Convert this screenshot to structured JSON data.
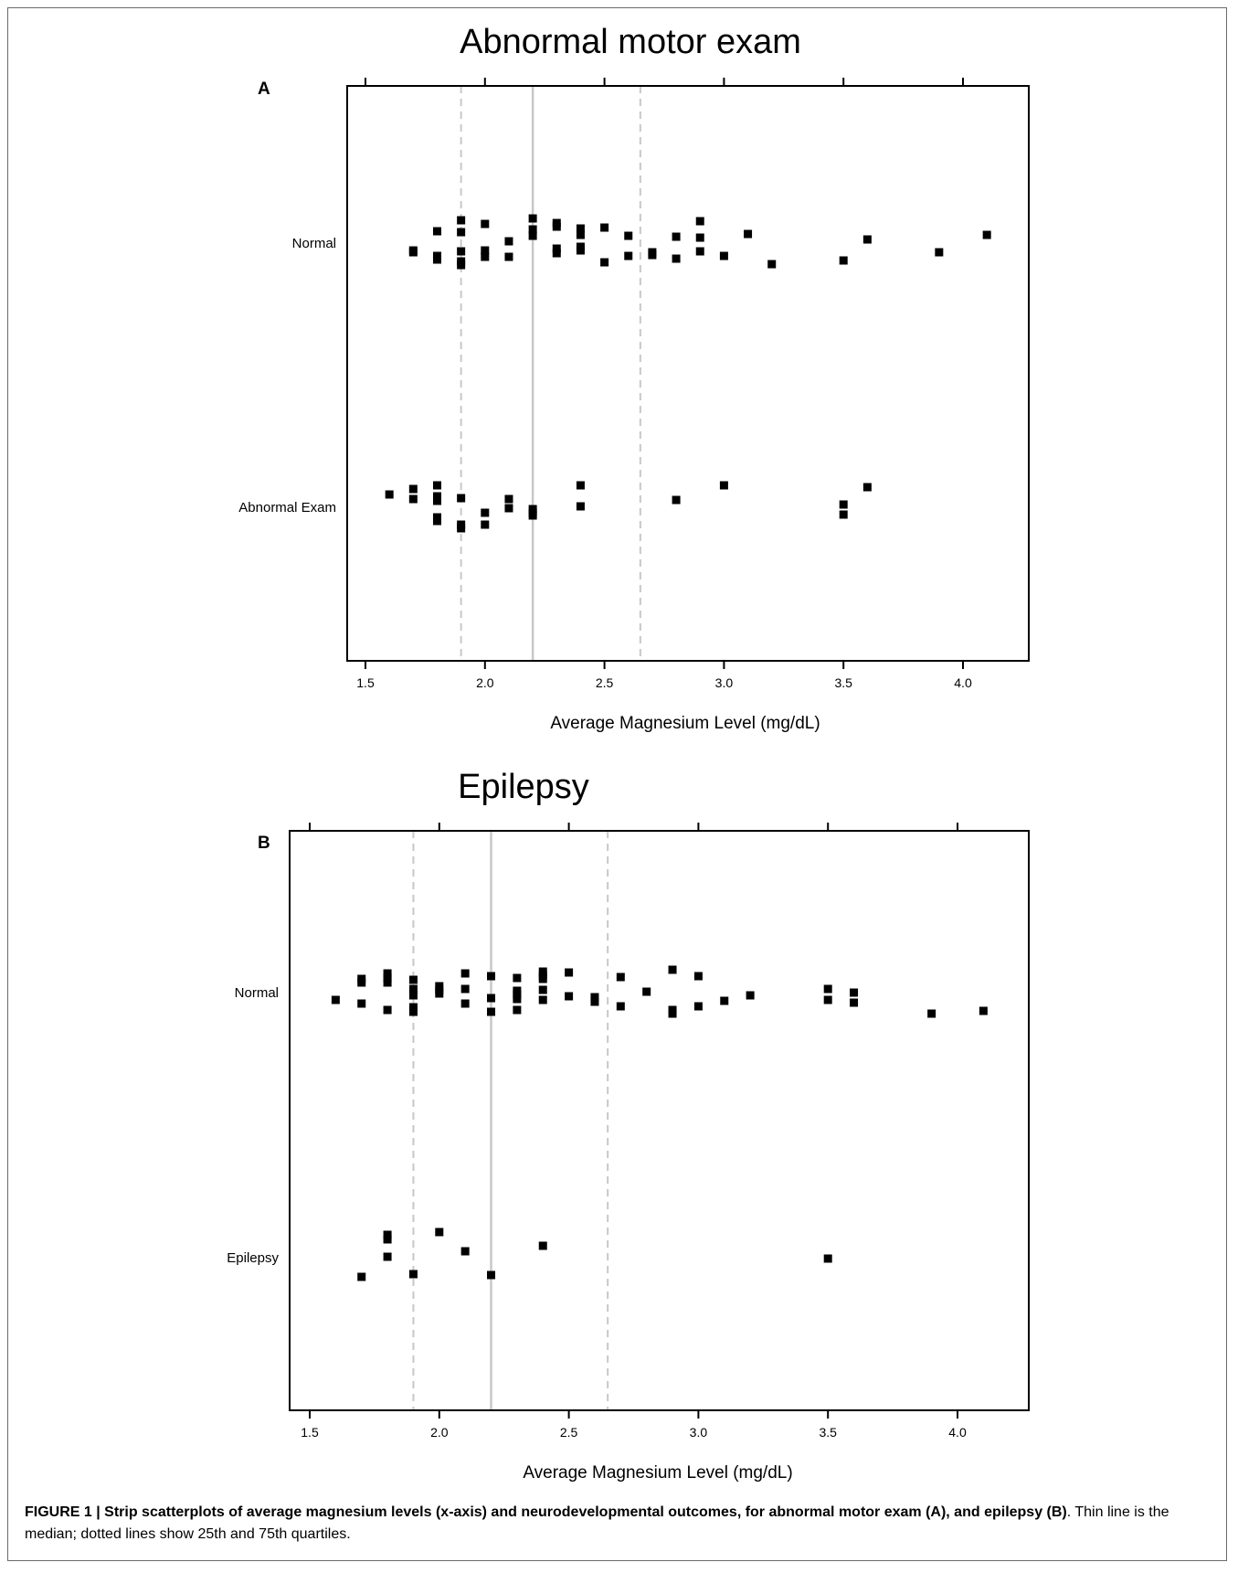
{
  "caption": {
    "bold": "FIGURE 1 | Strip scatterplots of average magnesium levels (x-axis) and neurodevelopmental outcomes, for abnormal motor exam (A), and epilepsy (B)",
    "rest": ". Thin line is the median; dotted lines show 25th and 75th quartiles."
  },
  "chart_data": [
    {
      "type": "scatter",
      "panel": "A",
      "title": "Abnormal motor exam",
      "xlabel": "Average Magnesium Level (mg/dL)",
      "ylabel": "",
      "xlim": [
        1.45,
        4.3
      ],
      "xticks": [
        "1.5",
        "2.0",
        "2.5",
        "3.0",
        "3.5",
        "4.0"
      ],
      "categories": [
        "Normal",
        "Abnormal Exam"
      ],
      "median": 2.2,
      "q1": 1.9,
      "q3": 2.65,
      "grid": false,
      "series": [
        {
          "name": "Normal",
          "jitter": [
            [
              1.7,
              -8
            ],
            [
              1.7,
              -10
            ],
            [
              1.8,
              13
            ],
            [
              1.8,
              -14
            ],
            [
              1.8,
              -18
            ],
            [
              1.9,
              25
            ],
            [
              1.9,
              12
            ],
            [
              1.9,
              -9
            ],
            [
              1.9,
              -20
            ],
            [
              1.9,
              -24
            ],
            [
              2.0,
              21
            ],
            [
              2.0,
              -8
            ],
            [
              2.0,
              -15
            ],
            [
              2.1,
              2
            ],
            [
              2.1,
              -15
            ],
            [
              2.2,
              27
            ],
            [
              2.2,
              15
            ],
            [
              2.2,
              8
            ],
            [
              2.3,
              22
            ],
            [
              2.3,
              18
            ],
            [
              2.3,
              -6
            ],
            [
              2.3,
              -11
            ],
            [
              2.4,
              16
            ],
            [
              2.4,
              9
            ],
            [
              2.4,
              -4
            ],
            [
              2.4,
              -8
            ],
            [
              2.5,
              17
            ],
            [
              2.5,
              -21
            ],
            [
              2.6,
              8
            ],
            [
              2.6,
              -14
            ],
            [
              2.7,
              -10
            ],
            [
              2.7,
              -13
            ],
            [
              2.8,
              7
            ],
            [
              2.8,
              -17
            ],
            [
              2.9,
              24
            ],
            [
              2.9,
              6
            ],
            [
              2.9,
              -9
            ],
            [
              3.0,
              -14
            ],
            [
              3.1,
              10
            ],
            [
              3.2,
              -23
            ],
            [
              3.5,
              -19
            ],
            [
              3.6,
              4
            ],
            [
              3.9,
              -10
            ],
            [
              4.1,
              9
            ]
          ]
        },
        {
          "name": "Abnormal Exam",
          "jitter": [
            [
              1.6,
              14
            ],
            [
              1.7,
              20
            ],
            [
              1.7,
              9
            ],
            [
              1.8,
              24
            ],
            [
              1.8,
              12
            ],
            [
              1.8,
              7
            ],
            [
              1.8,
              -11
            ],
            [
              1.8,
              -15
            ],
            [
              1.9,
              10
            ],
            [
              1.9,
              -19
            ],
            [
              1.9,
              -23
            ],
            [
              2.0,
              -6
            ],
            [
              2.0,
              -19
            ],
            [
              2.1,
              9
            ],
            [
              2.1,
              -1
            ],
            [
              2.2,
              -2
            ],
            [
              2.2,
              -6
            ],
            [
              2.2,
              -9
            ],
            [
              2.4,
              24
            ],
            [
              2.4,
              1
            ],
            [
              2.8,
              8
            ],
            [
              3.0,
              24
            ],
            [
              3.5,
              3
            ],
            [
              3.5,
              -8
            ],
            [
              3.6,
              22
            ]
          ]
        }
      ]
    },
    {
      "type": "scatter",
      "panel": "B",
      "title": "Epilepsy",
      "xlabel": "Average Magnesium Level (mg/dL)",
      "ylabel": "",
      "xlim": [
        1.45,
        4.3
      ],
      "xticks": [
        "1.5",
        "2.0",
        "2.5",
        "3.0",
        "3.5",
        "4.0"
      ],
      "categories": [
        "Normal",
        "Epilepsy"
      ],
      "median": 2.2,
      "q1": 1.9,
      "q3": 2.65,
      "grid": false,
      "series": [
        {
          "name": "Normal",
          "jitter": [
            [
              1.6,
              -8
            ],
            [
              1.7,
              15
            ],
            [
              1.7,
              11
            ],
            [
              1.7,
              -12
            ],
            [
              1.8,
              21
            ],
            [
              1.8,
              16
            ],
            [
              1.8,
              11
            ],
            [
              1.8,
              -19
            ],
            [
              1.9,
              14
            ],
            [
              1.9,
              4
            ],
            [
              1.9,
              -3
            ],
            [
              1.9,
              -16
            ],
            [
              1.9,
              -21
            ],
            [
              2.0,
              7
            ],
            [
              2.0,
              3
            ],
            [
              2.0,
              -1
            ],
            [
              2.1,
              21
            ],
            [
              2.1,
              4
            ],
            [
              2.1,
              -12
            ],
            [
              2.2,
              18
            ],
            [
              2.2,
              -6
            ],
            [
              2.2,
              -21
            ],
            [
              2.3,
              16
            ],
            [
              2.3,
              2
            ],
            [
              2.3,
              -2
            ],
            [
              2.3,
              -7
            ],
            [
              2.3,
              -19
            ],
            [
              2.4,
              23
            ],
            [
              2.4,
              19
            ],
            [
              2.4,
              15
            ],
            [
              2.4,
              3
            ],
            [
              2.4,
              -8
            ],
            [
              2.5,
              22
            ],
            [
              2.5,
              -4
            ],
            [
              2.6,
              -5
            ],
            [
              2.6,
              -10
            ],
            [
              2.7,
              17
            ],
            [
              2.7,
              -15
            ],
            [
              2.8,
              1
            ],
            [
              2.9,
              25
            ],
            [
              2.9,
              -19
            ],
            [
              2.9,
              -23
            ],
            [
              3.0,
              18
            ],
            [
              3.0,
              -15
            ],
            [
              3.1,
              -9
            ],
            [
              3.2,
              -3
            ],
            [
              3.5,
              4
            ],
            [
              3.5,
              -8
            ],
            [
              3.6,
              0
            ],
            [
              3.6,
              -11
            ],
            [
              3.9,
              -23
            ],
            [
              4.1,
              -20
            ]
          ]
        },
        {
          "name": "Epilepsy",
          "jitter": [
            [
              1.7,
              -21
            ],
            [
              1.8,
              25
            ],
            [
              1.8,
              20
            ],
            [
              1.8,
              1
            ],
            [
              1.9,
              -18
            ],
            [
              2.0,
              28
            ],
            [
              2.1,
              7
            ],
            [
              2.2,
              -19
            ],
            [
              2.4,
              13
            ],
            [
              3.5,
              -1
            ]
          ]
        }
      ]
    }
  ]
}
